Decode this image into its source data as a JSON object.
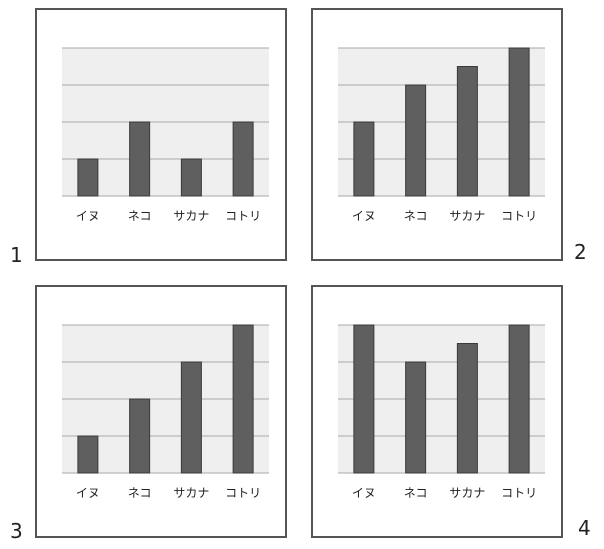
{
  "colors": {
    "bar": "#5f5f5f",
    "bar_stroke": "#3a3a3a",
    "plot_bg": "#efefef",
    "grid": "#a9a9a9",
    "panel_border": "#555555",
    "text": "#222222"
  },
  "chart_data": [
    {
      "type": "bar",
      "panel_label": "1",
      "categories": [
        "イヌ",
        "ネコ",
        "サカナ",
        "コトリ"
      ],
      "values": [
        1,
        2,
        1,
        2
      ],
      "ylim": [
        0,
        4
      ],
      "grid": true,
      "title": "",
      "xlabel": "",
      "ylabel": ""
    },
    {
      "type": "bar",
      "panel_label": "2",
      "categories": [
        "イヌ",
        "ネコ",
        "サカナ",
        "コトリ"
      ],
      "values": [
        2,
        3,
        3.5,
        4
      ],
      "ylim": [
        0,
        4
      ],
      "grid": true,
      "title": "",
      "xlabel": "",
      "ylabel": ""
    },
    {
      "type": "bar",
      "panel_label": "3",
      "categories": [
        "イヌ",
        "ネコ",
        "サカナ",
        "コトリ"
      ],
      "values": [
        1,
        2,
        3,
        4
      ],
      "ylim": [
        0,
        4
      ],
      "grid": true,
      "title": "",
      "xlabel": "",
      "ylabel": ""
    },
    {
      "type": "bar",
      "panel_label": "4",
      "categories": [
        "イヌ",
        "ネコ",
        "サカナ",
        "コトリ"
      ],
      "values": [
        4,
        3,
        3.5,
        4
      ],
      "ylim": [
        0,
        4
      ],
      "grid": true,
      "title": "",
      "xlabel": "",
      "ylabel": ""
    }
  ]
}
